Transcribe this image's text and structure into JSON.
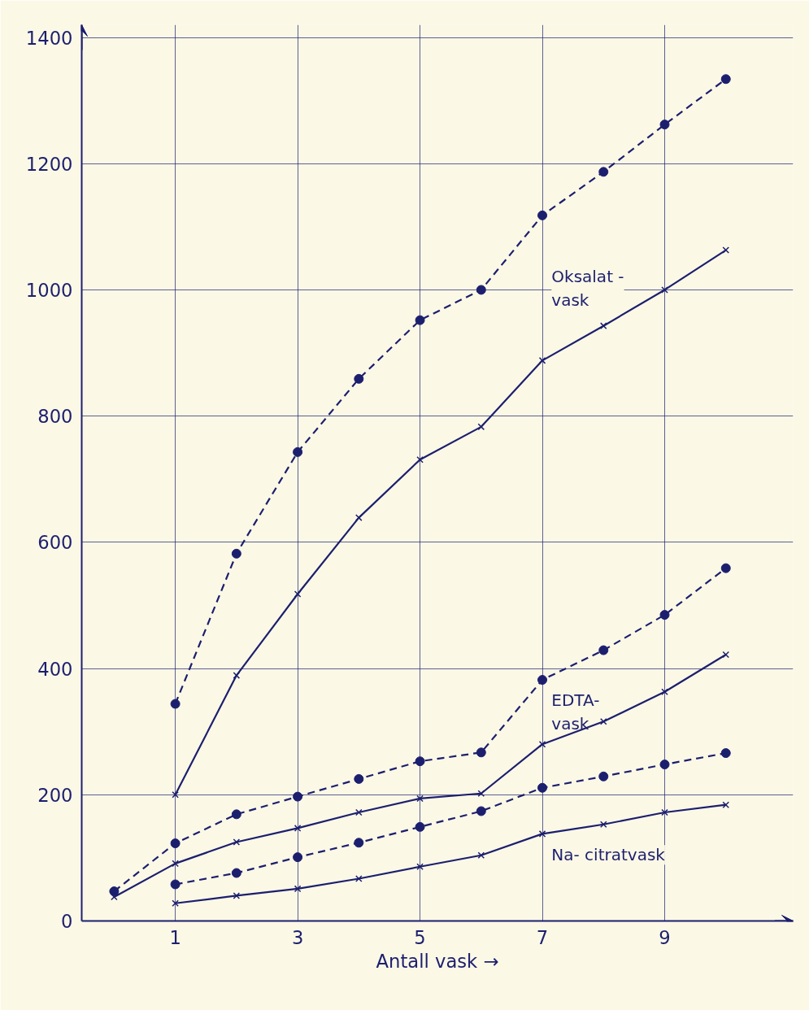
{
  "chart_data": {
    "type": "line",
    "xlabel": "Antall vask →",
    "xlim": [
      -0.53,
      11.1
    ],
    "ylim": [
      0,
      1420
    ],
    "xticks": [
      1,
      3,
      5,
      7,
      9
    ],
    "yticks": [
      0,
      200,
      400,
      600,
      800,
      1000,
      1200,
      1400
    ],
    "grid": true,
    "series": [
      {
        "color": "#1c1f6e",
        "marker": "circle",
        "line_style": "dashed",
        "x": [
          1,
          2,
          3,
          4,
          5,
          6,
          7,
          8,
          9,
          10
        ],
        "values": [
          344,
          582,
          743,
          859,
          952,
          1000,
          1118,
          1187,
          1262,
          1334
        ]
      },
      {
        "color": "#1c1f6e",
        "marker": "cross",
        "line_style": "solid",
        "x": [
          1,
          2,
          3,
          4,
          5,
          6,
          7,
          8,
          9,
          10
        ],
        "values": [
          200,
          389,
          518,
          639,
          731,
          783,
          888,
          943,
          1000,
          1063
        ]
      },
      {
        "color": "#1c1f6e",
        "marker": "circle",
        "line_style": "dashed",
        "x": [
          0,
          1,
          2,
          3,
          4,
          5,
          6,
          7,
          8,
          9,
          10
        ],
        "values": [
          47,
          123,
          169,
          197,
          225,
          253,
          267,
          382,
          429,
          485,
          559
        ]
      },
      {
        "color": "#1c1f6e",
        "marker": "cross",
        "line_style": "solid",
        "x": [
          0,
          1,
          2,
          3,
          4,
          5,
          6,
          7,
          8,
          9,
          10
        ],
        "values": [
          38,
          91,
          125,
          147,
          172,
          194,
          202,
          280,
          316,
          363,
          422
        ]
      },
      {
        "color": "#1c1f6e",
        "marker": "circle",
        "line_style": "dashed",
        "x": [
          1,
          2,
          3,
          4,
          5,
          6,
          7,
          8,
          9,
          10
        ],
        "values": [
          58,
          76,
          101,
          124,
          149,
          174,
          211,
          229,
          248,
          266
        ]
      },
      {
        "color": "#1c1f6e",
        "marker": "cross",
        "line_style": "solid",
        "x": [
          1,
          2,
          3,
          4,
          5,
          6,
          7,
          8,
          9,
          10
        ],
        "values": [
          28,
          40,
          51,
          67,
          86,
          104,
          138,
          153,
          172,
          184
        ]
      }
    ],
    "annotations": [
      "Oksalat -\nvask",
      "EDTA-\nvask",
      "Na- citratvask"
    ]
  }
}
